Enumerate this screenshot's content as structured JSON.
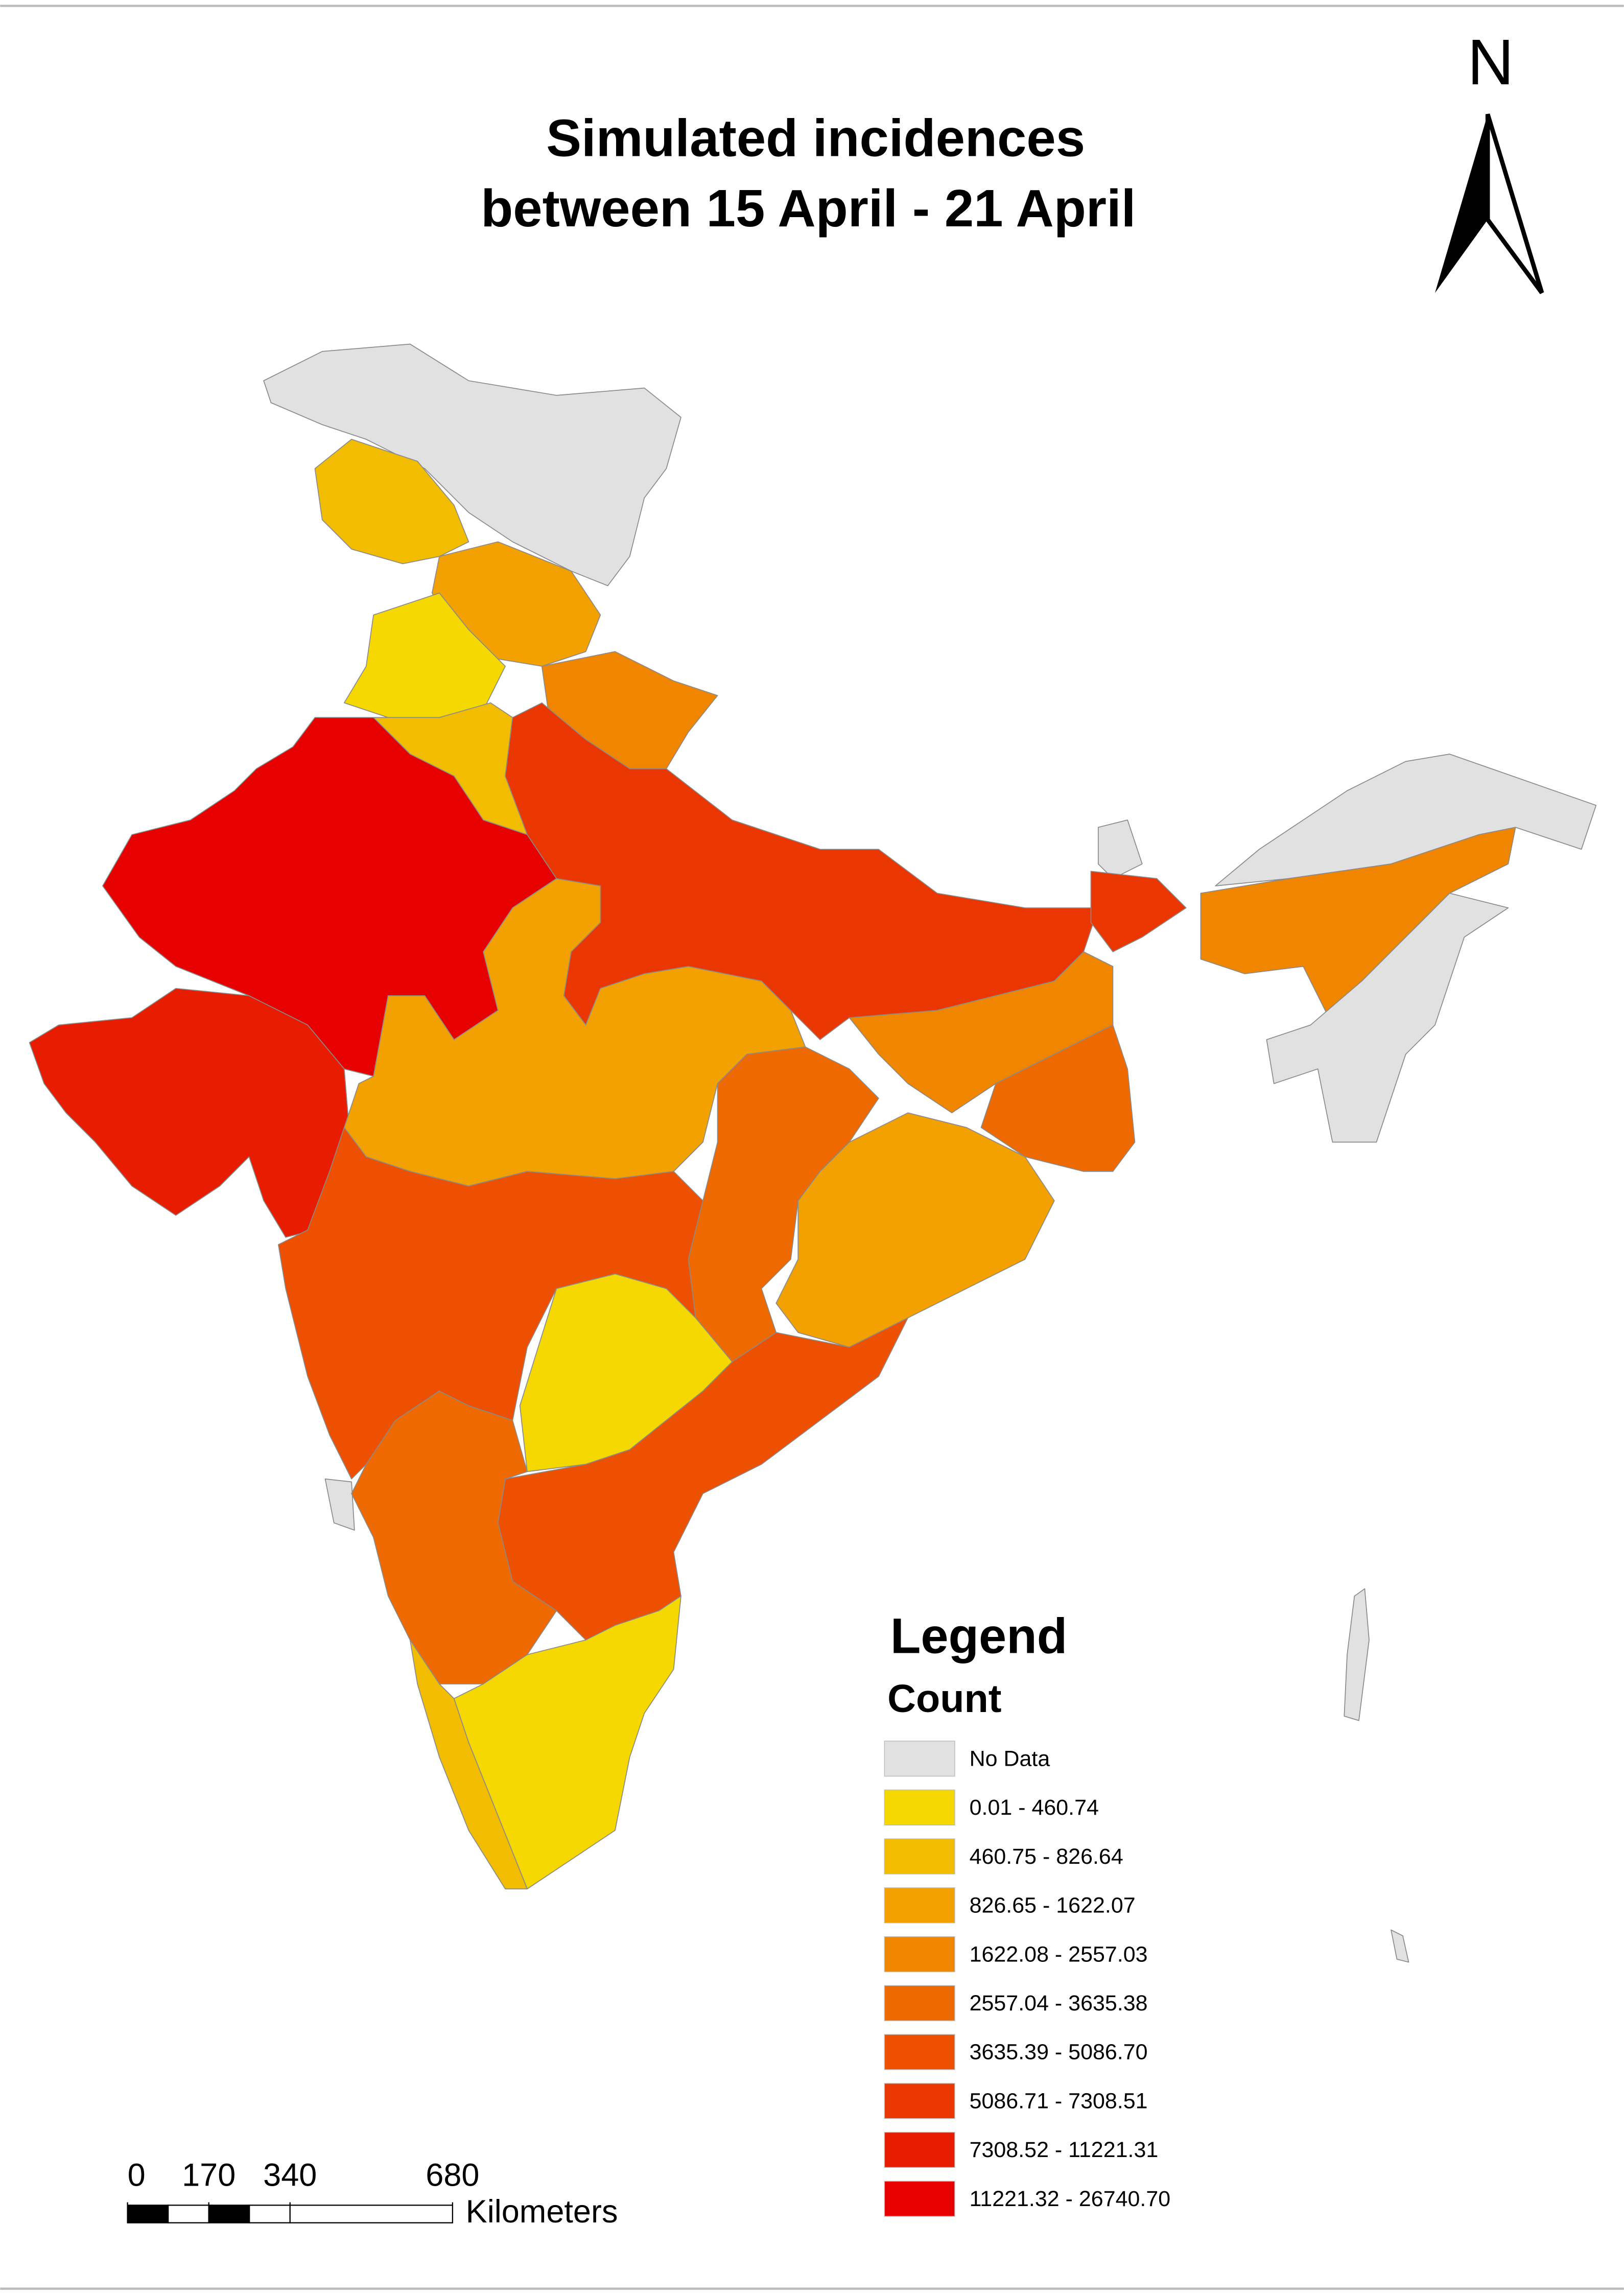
{
  "title": [
    "Simulated incidences",
    "between 15 April - 21 April"
  ],
  "north_arrow": "N",
  "legend": {
    "title": "Legend",
    "subtitle": "Count",
    "classes": [
      {
        "label": "No Data",
        "color": "#e1e1e1"
      },
      {
        "label": "0.01 - 460.74",
        "color": "#f5d800"
      },
      {
        "label": "460.75 - 826.64",
        "color": "#f2bd00"
      },
      {
        "label": "826.65 - 1622.07",
        "color": "#f2a100"
      },
      {
        "label": "1622.08 - 2557.03",
        "color": "#f08500"
      },
      {
        "label": "2557.04 - 3635.38",
        "color": "#ee6a00"
      },
      {
        "label": "3635.39 - 5086.70",
        "color": "#ec5000"
      },
      {
        "label": "5086.71 - 7308.51",
        "color": "#ea3600"
      },
      {
        "label": "7308.52 - 11221.31",
        "color": "#e81c00"
      },
      {
        "label": "11221.32 - 26740.70",
        "color": "#e60000"
      }
    ]
  },
  "scale_bar": {
    "ticks": [
      0,
      170,
      340,
      680
    ],
    "unit": "Kilometers"
  }
}
